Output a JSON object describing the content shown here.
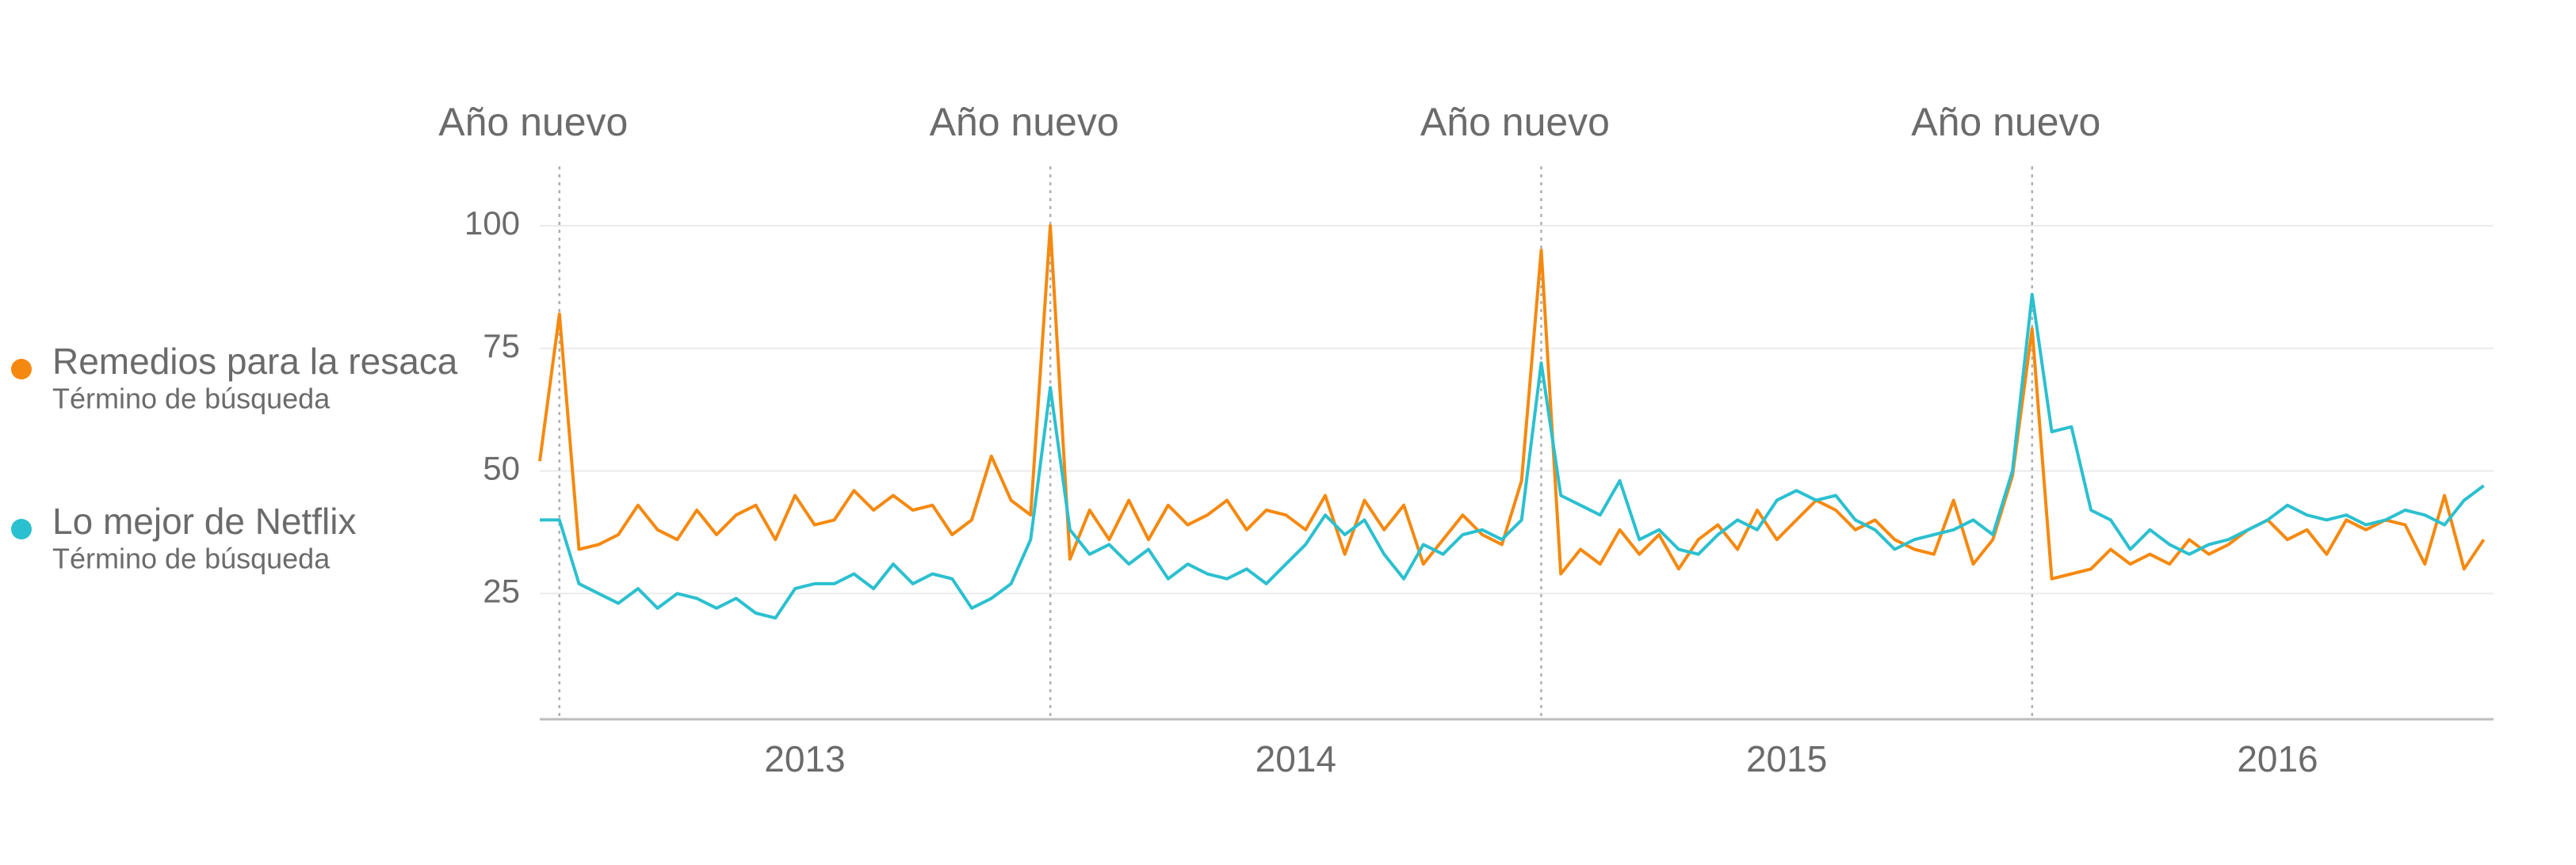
{
  "chart_data": {
    "type": "line",
    "annotations": [
      {
        "text": "Año nuevo",
        "x": 2013
      },
      {
        "text": "Año nuevo",
        "x": 2014
      },
      {
        "text": "Año nuevo",
        "x": 2015
      },
      {
        "text": "Año nuevo",
        "x": 2016
      }
    ],
    "x": [
      2012.96,
      2013.0,
      2013.04,
      2013.08,
      2013.12,
      2013.16,
      2013.2,
      2013.24,
      2013.28,
      2013.32,
      2013.36,
      2013.4,
      2013.44,
      2013.48,
      2013.52,
      2013.56,
      2013.6,
      2013.64,
      2013.68,
      2013.72,
      2013.76,
      2013.8,
      2013.84,
      2013.88,
      2013.92,
      2013.96,
      2014.0,
      2014.04,
      2014.08,
      2014.12,
      2014.16,
      2014.2,
      2014.24,
      2014.28,
      2014.32,
      2014.36,
      2014.4,
      2014.44,
      2014.48,
      2014.52,
      2014.56,
      2014.6,
      2014.64,
      2014.68,
      2014.72,
      2014.76,
      2014.8,
      2014.84,
      2014.88,
      2014.92,
      2014.96,
      2015.0,
      2015.04,
      2015.08,
      2015.12,
      2015.16,
      2015.2,
      2015.24,
      2015.28,
      2015.32,
      2015.36,
      2015.4,
      2015.44,
      2015.48,
      2015.52,
      2015.56,
      2015.6,
      2015.64,
      2015.68,
      2015.72,
      2015.76,
      2015.8,
      2015.84,
      2015.88,
      2015.92,
      2015.96,
      2016.0,
      2016.04,
      2016.08,
      2016.12,
      2016.16,
      2016.2,
      2016.24,
      2016.28,
      2016.32,
      2016.36,
      2016.4,
      2016.44,
      2016.48,
      2016.52,
      2016.56,
      2016.6,
      2016.64,
      2016.68,
      2016.72,
      2016.76,
      2016.8,
      2016.84,
      2016.88,
      2016.92
    ],
    "series": [
      {
        "name": "Remedios para la resaca",
        "subtitle": "Término de búsqueda",
        "color": "#f5890f",
        "values": [
          52,
          82,
          34,
          35,
          37,
          43,
          38,
          36,
          42,
          37,
          41,
          43,
          36,
          45,
          39,
          40,
          46,
          42,
          45,
          42,
          43,
          37,
          40,
          53,
          44,
          41,
          100,
          32,
          42,
          36,
          44,
          36,
          43,
          39,
          41,
          44,
          38,
          42,
          41,
          38,
          45,
          33,
          44,
          38,
          43,
          31,
          36,
          41,
          37,
          35,
          48,
          95,
          29,
          34,
          31,
          38,
          33,
          37,
          30,
          36,
          39,
          34,
          42,
          36,
          40,
          44,
          42,
          38,
          40,
          36,
          34,
          33,
          44,
          31,
          36,
          49,
          79,
          28,
          29,
          30,
          34,
          31,
          33,
          31,
          36,
          33,
          35,
          38,
          40,
          36,
          38,
          33,
          40,
          38,
          40,
          39,
          31,
          45,
          30,
          36
        ]
      },
      {
        "name": "Lo mejor de Netflix",
        "subtitle": "Término de búsqueda",
        "color": "#2bc0d0",
        "values": [
          40,
          40,
          27,
          25,
          23,
          26,
          22,
          25,
          24,
          22,
          24,
          21,
          20,
          26,
          27,
          27,
          29,
          26,
          31,
          27,
          29,
          28,
          22,
          24,
          27,
          36,
          67,
          38,
          33,
          35,
          31,
          34,
          28,
          31,
          29,
          28,
          30,
          27,
          31,
          35,
          41,
          37,
          40,
          33,
          28,
          35,
          33,
          37,
          38,
          36,
          40,
          72,
          45,
          43,
          41,
          48,
          36,
          38,
          34,
          33,
          37,
          40,
          38,
          44,
          46,
          44,
          45,
          40,
          38,
          34,
          36,
          37,
          38,
          40,
          37,
          50,
          86,
          58,
          59,
          42,
          40,
          34,
          38,
          35,
          33,
          35,
          36,
          38,
          40,
          43,
          41,
          40,
          41,
          39,
          40,
          42,
          41,
          39,
          44,
          47
        ]
      }
    ],
    "xlim": [
      2012.96,
      2016.94
    ],
    "xticks": [
      {
        "value": 2013.5,
        "label": "2013"
      },
      {
        "value": 2014.5,
        "label": "2014"
      },
      {
        "value": 2015.5,
        "label": "2015"
      },
      {
        "value": 2016.5,
        "label": "2016"
      }
    ],
    "ylim": [
      0,
      100
    ],
    "yticks": [
      25,
      50,
      75,
      100
    ],
    "grid": true,
    "legend": "left"
  }
}
